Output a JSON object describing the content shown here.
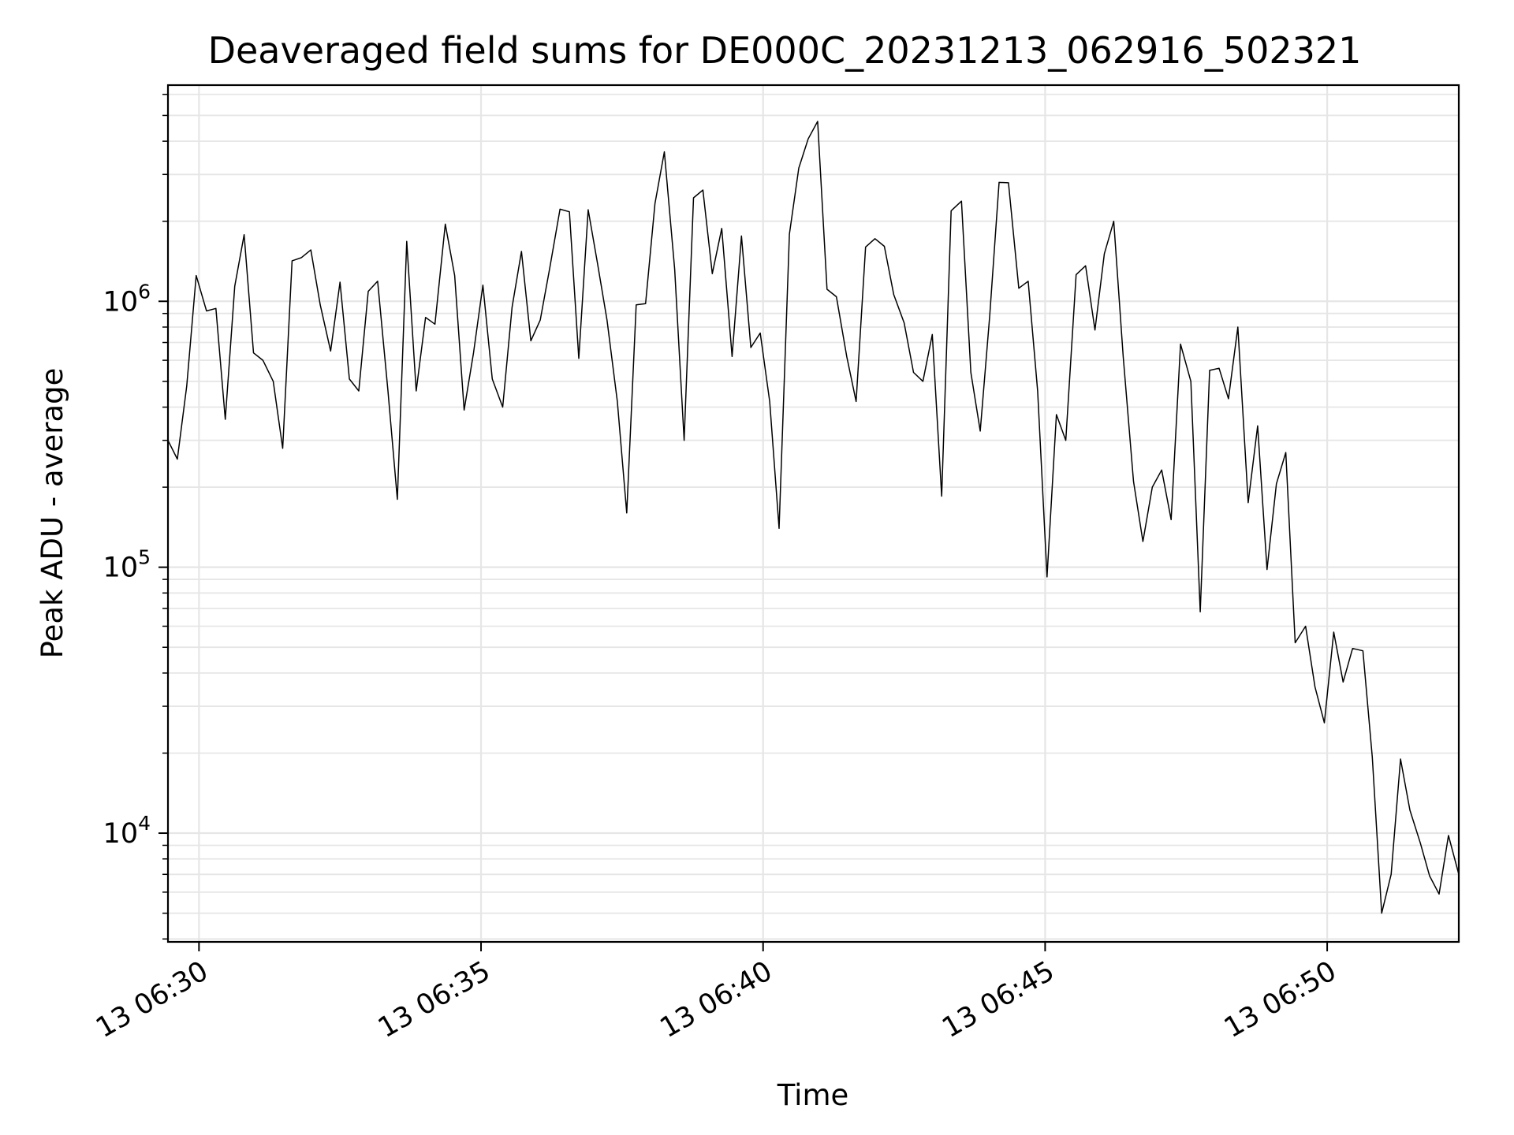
{
  "chart_data": {
    "type": "line",
    "title": "Deaveraged field sums for DE000C_20231213_062916_502321",
    "xlabel": "Time",
    "ylabel": "Peak ADU - average",
    "yscale": "log",
    "grid": true,
    "legend": "none",
    "line_color": "#000000",
    "grid_color": "#e6e6e6",
    "xlim": [
      "2023-12-13 06:29:27",
      "2023-12-13 06:52:20"
    ],
    "ylim": [
      3900,
      6500000
    ],
    "x_ticks": [
      {
        "value": "2023-12-13 06:30:00",
        "label": "13 06:30"
      },
      {
        "value": "2023-12-13 06:35:00",
        "label": "13 06:35"
      },
      {
        "value": "2023-12-13 06:40:00",
        "label": "13 06:40"
      },
      {
        "value": "2023-12-13 06:45:00",
        "label": "13 06:45"
      },
      {
        "value": "2023-12-13 06:50:00",
        "label": "13 06:50"
      }
    ],
    "y_ticks": [
      {
        "value": 10000,
        "base": "10",
        "exp": "4"
      },
      {
        "value": 100000,
        "base": "10",
        "exp": "5"
      },
      {
        "value": 1000000,
        "base": "10",
        "exp": "6"
      }
    ],
    "series": [
      {
        "x": [
          "2023-12-13 06:29:27",
          "2023-12-13 06:29:37",
          "2023-12-13 06:29:47",
          "2023-12-13 06:29:57",
          "2023-12-13 06:30:08",
          "2023-12-13 06:30:18",
          "2023-12-13 06:30:28",
          "2023-12-13 06:30:38",
          "2023-12-13 06:30:48",
          "2023-12-13 06:30:58",
          "2023-12-13 06:31:08",
          "2023-12-13 06:31:19",
          "2023-12-13 06:31:29",
          "2023-12-13 06:31:39",
          "2023-12-13 06:31:49",
          "2023-12-13 06:31:59",
          "2023-12-13 06:32:09",
          "2023-12-13 06:32:20",
          "2023-12-13 06:32:30",
          "2023-12-13 06:32:40",
          "2023-12-13 06:32:50",
          "2023-12-13 06:33:00",
          "2023-12-13 06:33:10",
          "2023-12-13 06:33:21",
          "2023-12-13 06:33:31",
          "2023-12-13 06:33:41",
          "2023-12-13 06:33:51",
          "2023-12-13 06:34:01",
          "2023-12-13 06:34:11",
          "2023-12-13 06:34:22",
          "2023-12-13 06:34:32",
          "2023-12-13 06:34:42",
          "2023-12-13 06:34:52",
          "2023-12-13 06:35:02",
          "2023-12-13 06:35:12",
          "2023-12-13 06:35:23",
          "2023-12-13 06:35:33",
          "2023-12-13 06:35:43",
          "2023-12-13 06:35:53",
          "2023-12-13 06:36:03",
          "2023-12-13 06:36:13",
          "2023-12-13 06:36:24",
          "2023-12-13 06:36:34",
          "2023-12-13 06:36:44",
          "2023-12-13 06:36:54",
          "2023-12-13 06:37:04",
          "2023-12-13 06:37:14",
          "2023-12-13 06:37:25",
          "2023-12-13 06:37:35",
          "2023-12-13 06:37:45",
          "2023-12-13 06:37:55",
          "2023-12-13 06:38:05",
          "2023-12-13 06:38:15",
          "2023-12-13 06:38:26",
          "2023-12-13 06:38:36",
          "2023-12-13 06:38:46",
          "2023-12-13 06:38:56",
          "2023-12-13 06:39:06",
          "2023-12-13 06:39:16",
          "2023-12-13 06:39:27",
          "2023-12-13 06:39:37",
          "2023-12-13 06:39:47",
          "2023-12-13 06:39:57",
          "2023-12-13 06:40:07",
          "2023-12-13 06:40:17",
          "2023-12-13 06:40:28",
          "2023-12-13 06:40:38",
          "2023-12-13 06:40:48",
          "2023-12-13 06:40:58",
          "2023-12-13 06:41:08",
          "2023-12-13 06:41:18",
          "2023-12-13 06:41:29",
          "2023-12-13 06:41:39",
          "2023-12-13 06:41:49",
          "2023-12-13 06:41:59",
          "2023-12-13 06:42:09",
          "2023-12-13 06:42:19",
          "2023-12-13 06:42:30",
          "2023-12-13 06:42:40",
          "2023-12-13 06:42:50",
          "2023-12-13 06:43:00",
          "2023-12-13 06:43:10",
          "2023-12-13 06:43:20",
          "2023-12-13 06:43:31",
          "2023-12-13 06:43:41",
          "2023-12-13 06:43:51",
          "2023-12-13 06:44:01",
          "2023-12-13 06:44:11",
          "2023-12-13 06:44:21",
          "2023-12-13 06:44:32",
          "2023-12-13 06:44:42",
          "2023-12-13 06:44:52",
          "2023-12-13 06:45:02",
          "2023-12-13 06:45:12",
          "2023-12-13 06:45:22",
          "2023-12-13 06:45:33",
          "2023-12-13 06:45:43",
          "2023-12-13 06:45:53",
          "2023-12-13 06:46:03",
          "2023-12-13 06:46:13",
          "2023-12-13 06:46:23",
          "2023-12-13 06:46:34",
          "2023-12-13 06:46:44",
          "2023-12-13 06:46:54",
          "2023-12-13 06:47:04",
          "2023-12-13 06:47:14",
          "2023-12-13 06:47:24",
          "2023-12-13 06:47:35",
          "2023-12-13 06:47:45",
          "2023-12-13 06:47:55",
          "2023-12-13 06:48:05",
          "2023-12-13 06:48:15",
          "2023-12-13 06:48:25",
          "2023-12-13 06:48:36",
          "2023-12-13 06:48:46",
          "2023-12-13 06:48:56",
          "2023-12-13 06:49:06",
          "2023-12-13 06:49:16",
          "2023-12-13 06:49:26",
          "2023-12-13 06:49:37",
          "2023-12-13 06:49:47",
          "2023-12-13 06:49:57",
          "2023-12-13 06:50:07",
          "2023-12-13 06:50:17",
          "2023-12-13 06:50:27",
          "2023-12-13 06:50:38",
          "2023-12-13 06:50:48",
          "2023-12-13 06:50:58",
          "2023-12-13 06:51:08",
          "2023-12-13 06:51:18",
          "2023-12-13 06:51:28",
          "2023-12-13 06:51:39",
          "2023-12-13 06:51:49",
          "2023-12-13 06:51:59",
          "2023-12-13 06:52:09",
          "2023-12-13 06:52:20"
        ],
        "y": [
          300000,
          255000,
          480000,
          1250000,
          920000,
          940000,
          360000,
          1140000,
          1780000,
          640000,
          600000,
          500000,
          280000,
          1420000,
          1460000,
          1560000,
          970000,
          650000,
          1180000,
          510000,
          460000,
          1090000,
          1190000,
          460000,
          180000,
          1680000,
          460000,
          870000,
          820000,
          1950000,
          1250000,
          390000,
          640000,
          1150000,
          510000,
          400000,
          950000,
          1540000,
          710000,
          850000,
          1330000,
          2220000,
          2170000,
          610000,
          2210000,
          1380000,
          850000,
          420000,
          160000,
          970000,
          980000,
          2330000,
          3650000,
          1320000,
          300000,
          2450000,
          2620000,
          1270000,
          1880000,
          620000,
          1760000,
          670000,
          760000,
          420000,
          140000,
          1790000,
          3170000,
          4080000,
          4750000,
          1110000,
          1040000,
          620000,
          420000,
          1600000,
          1720000,
          1610000,
          1060000,
          830000,
          540000,
          500000,
          750000,
          185000,
          2190000,
          2380000,
          540000,
          325000,
          880000,
          2800000,
          2790000,
          1120000,
          1190000,
          460000,
          92000,
          375000,
          300000,
          1260000,
          1360000,
          780000,
          1510000,
          2000000,
          620000,
          210000,
          125000,
          200000,
          232000,
          151000,
          690000,
          500000,
          68000,
          550000,
          560000,
          430000,
          800000,
          175000,
          340000,
          98000,
          206000,
          270000,
          52000,
          60000,
          35500,
          26000,
          57000,
          37000,
          49500,
          48500,
          19300,
          5000,
          7000,
          19000,
          12200,
          9200,
          6900,
          5900,
          9800,
          7000
        ]
      }
    ]
  }
}
